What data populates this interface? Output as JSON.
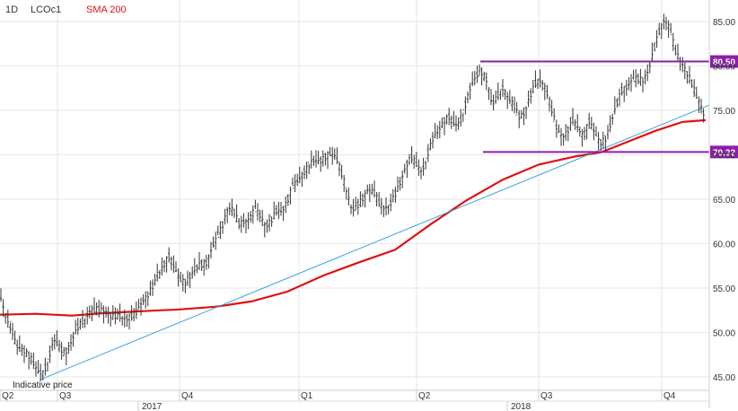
{
  "header": {
    "interval": "1D",
    "symbol": "LCOc1",
    "indicator": "SMA 200"
  },
  "colors": {
    "price": "#333333",
    "sma": "#e01010",
    "trendline": "#3aa0e0",
    "hline": "#8a20a8",
    "grid": "#e6e6e6"
  },
  "annotation": "Indicative price",
  "chart_data": {
    "type": "ohlc",
    "title": "",
    "ylim": [
      44,
      87
    ],
    "y_ticks": [
      "45.00",
      "50.00",
      "55.00",
      "60.00",
      "65.00",
      "70.00",
      "75.00",
      "80.00",
      "85.00"
    ],
    "x_quarter_labels": [
      "Q2",
      "Q3",
      "Q4",
      "Q1",
      "Q2",
      "Q3",
      "Q4"
    ],
    "x_year_labels": [
      "2017",
      "2018"
    ],
    "legend": "top-left",
    "grid": true,
    "price_levels": [
      {
        "label": "80.50",
        "value": 80.5
      },
      {
        "label": "70.32",
        "value": 70.32
      }
    ],
    "price_path": [
      {
        "x": 0,
        "y": 54.2
      },
      {
        "x": 6,
        "y": 52.0
      },
      {
        "x": 12,
        "y": 50.8
      },
      {
        "x": 18,
        "y": 48.5
      },
      {
        "x": 26,
        "y": 48.0
      },
      {
        "x": 34,
        "y": 47.2
      },
      {
        "x": 42,
        "y": 45.6
      },
      {
        "x": 48,
        "y": 45.4
      },
      {
        "x": 54,
        "y": 47.0
      },
      {
        "x": 60,
        "y": 49.2
      },
      {
        "x": 66,
        "y": 48.4
      },
      {
        "x": 72,
        "y": 47.6
      },
      {
        "x": 78,
        "y": 48.6
      },
      {
        "x": 86,
        "y": 50.5
      },
      {
        "x": 94,
        "y": 51.5
      },
      {
        "x": 100,
        "y": 52.4
      },
      {
        "x": 108,
        "y": 52.6
      },
      {
        "x": 116,
        "y": 52.5
      },
      {
        "x": 124,
        "y": 51.8
      },
      {
        "x": 132,
        "y": 51.9
      },
      {
        "x": 140,
        "y": 51.5
      },
      {
        "x": 146,
        "y": 51.8
      },
      {
        "x": 152,
        "y": 52.3
      },
      {
        "x": 158,
        "y": 53.4
      },
      {
        "x": 164,
        "y": 54.1
      },
      {
        "x": 170,
        "y": 55.2
      },
      {
        "x": 176,
        "y": 56.4
      },
      {
        "x": 182,
        "y": 57.5
      },
      {
        "x": 188,
        "y": 58.6
      },
      {
        "x": 194,
        "y": 57.4
      },
      {
        "x": 200,
        "y": 56.0
      },
      {
        "x": 206,
        "y": 55.6
      },
      {
        "x": 214,
        "y": 56.6
      },
      {
        "x": 222,
        "y": 57.6
      },
      {
        "x": 230,
        "y": 57.8
      },
      {
        "x": 236,
        "y": 59.5
      },
      {
        "x": 242,
        "y": 60.8
      },
      {
        "x": 248,
        "y": 62.1
      },
      {
        "x": 254,
        "y": 64.0
      },
      {
        "x": 260,
        "y": 63.8
      },
      {
        "x": 266,
        "y": 62.2
      },
      {
        "x": 272,
        "y": 62.5
      },
      {
        "x": 278,
        "y": 62.7
      },
      {
        "x": 284,
        "y": 63.9
      },
      {
        "x": 290,
        "y": 63.1
      },
      {
        "x": 296,
        "y": 61.9
      },
      {
        "x": 302,
        "y": 62.6
      },
      {
        "x": 308,
        "y": 63.7
      },
      {
        "x": 314,
        "y": 63.6
      },
      {
        "x": 320,
        "y": 64.8
      },
      {
        "x": 326,
        "y": 66.5
      },
      {
        "x": 332,
        "y": 67.1
      },
      {
        "x": 338,
        "y": 67.9
      },
      {
        "x": 344,
        "y": 68.8
      },
      {
        "x": 350,
        "y": 69.4
      },
      {
        "x": 356,
        "y": 69.2
      },
      {
        "x": 362,
        "y": 69.7
      },
      {
        "x": 368,
        "y": 70.1
      },
      {
        "x": 374,
        "y": 69.8
      },
      {
        "x": 380,
        "y": 68.1
      },
      {
        "x": 386,
        "y": 66.0
      },
      {
        "x": 392,
        "y": 63.7
      },
      {
        "x": 398,
        "y": 64.2
      },
      {
        "x": 404,
        "y": 65.1
      },
      {
        "x": 410,
        "y": 66.1
      },
      {
        "x": 416,
        "y": 65.9
      },
      {
        "x": 422,
        "y": 64.6
      },
      {
        "x": 428,
        "y": 64.0
      },
      {
        "x": 434,
        "y": 64.3
      },
      {
        "x": 440,
        "y": 65.5
      },
      {
        "x": 446,
        "y": 66.9
      },
      {
        "x": 452,
        "y": 68.7
      },
      {
        "x": 458,
        "y": 69.8
      },
      {
        "x": 464,
        "y": 68.9
      },
      {
        "x": 470,
        "y": 68.0
      },
      {
        "x": 476,
        "y": 70.0
      },
      {
        "x": 482,
        "y": 71.8
      },
      {
        "x": 488,
        "y": 72.6
      },
      {
        "x": 494,
        "y": 73.7
      },
      {
        "x": 500,
        "y": 74.3
      },
      {
        "x": 506,
        "y": 73.4
      },
      {
        "x": 512,
        "y": 73.5
      },
      {
        "x": 518,
        "y": 75.5
      },
      {
        "x": 524,
        "y": 77.6
      },
      {
        "x": 530,
        "y": 78.8
      },
      {
        "x": 536,
        "y": 79.4
      },
      {
        "x": 542,
        "y": 78.4
      },
      {
        "x": 548,
        "y": 75.6
      },
      {
        "x": 554,
        "y": 76.6
      },
      {
        "x": 560,
        "y": 77.5
      },
      {
        "x": 566,
        "y": 76.4
      },
      {
        "x": 572,
        "y": 75.6
      },
      {
        "x": 578,
        "y": 74.3
      },
      {
        "x": 584,
        "y": 74.6
      },
      {
        "x": 590,
        "y": 76.5
      },
      {
        "x": 596,
        "y": 78.0
      },
      {
        "x": 602,
        "y": 78.4
      },
      {
        "x": 608,
        "y": 77.4
      },
      {
        "x": 614,
        "y": 75.3
      },
      {
        "x": 620,
        "y": 73.0
      },
      {
        "x": 626,
        "y": 72.0
      },
      {
        "x": 632,
        "y": 72.6
      },
      {
        "x": 638,
        "y": 73.9
      },
      {
        "x": 644,
        "y": 73.0
      },
      {
        "x": 650,
        "y": 72.0
      },
      {
        "x": 656,
        "y": 73.8
      },
      {
        "x": 662,
        "y": 72.6
      },
      {
        "x": 668,
        "y": 71.3
      },
      {
        "x": 674,
        "y": 71.7
      },
      {
        "x": 680,
        "y": 73.4
      },
      {
        "x": 686,
        "y": 75.4
      },
      {
        "x": 692,
        "y": 77.2
      },
      {
        "x": 698,
        "y": 77.6
      },
      {
        "x": 704,
        "y": 78.4
      },
      {
        "x": 710,
        "y": 78.6
      },
      {
        "x": 716,
        "y": 78.4
      },
      {
        "x": 722,
        "y": 79.4
      },
      {
        "x": 728,
        "y": 81.7
      },
      {
        "x": 734,
        "y": 83.8
      },
      {
        "x": 740,
        "y": 85.2
      },
      {
        "x": 746,
        "y": 84.3
      },
      {
        "x": 752,
        "y": 81.7
      },
      {
        "x": 758,
        "y": 80.6
      },
      {
        "x": 764,
        "y": 79.4
      },
      {
        "x": 770,
        "y": 78.2
      },
      {
        "x": 776,
        "y": 76.5
      },
      {
        "x": 782,
        "y": 75.2
      },
      {
        "x": 786,
        "y": 73.8
      }
    ],
    "sma_200": [
      {
        "x": 0,
        "y": 52.0
      },
      {
        "x": 40,
        "y": 52.1
      },
      {
        "x": 80,
        "y": 51.9
      },
      {
        "x": 120,
        "y": 52.2
      },
      {
        "x": 160,
        "y": 52.4
      },
      {
        "x": 200,
        "y": 52.6
      },
      {
        "x": 240,
        "y": 52.9
      },
      {
        "x": 280,
        "y": 53.5
      },
      {
        "x": 320,
        "y": 54.6
      },
      {
        "x": 360,
        "y": 56.4
      },
      {
        "x": 400,
        "y": 57.9
      },
      {
        "x": 440,
        "y": 59.3
      },
      {
        "x": 480,
        "y": 62.2
      },
      {
        "x": 520,
        "y": 64.9
      },
      {
        "x": 560,
        "y": 67.2
      },
      {
        "x": 600,
        "y": 68.9
      },
      {
        "x": 640,
        "y": 69.8
      },
      {
        "x": 670,
        "y": 70.3
      },
      {
        "x": 700,
        "y": 71.5
      },
      {
        "x": 730,
        "y": 72.7
      },
      {
        "x": 760,
        "y": 73.7
      },
      {
        "x": 786,
        "y": 73.9
      }
    ],
    "trendline": [
      {
        "x": 45,
        "y": 44.7
      },
      {
        "x": 790,
        "y": 75.6
      }
    ],
    "horizontal_lines": [
      {
        "value": 80.5,
        "x_start": 535,
        "x_end": 790
      },
      {
        "value": 70.32,
        "x_start": 538,
        "x_end": 790
      }
    ]
  }
}
